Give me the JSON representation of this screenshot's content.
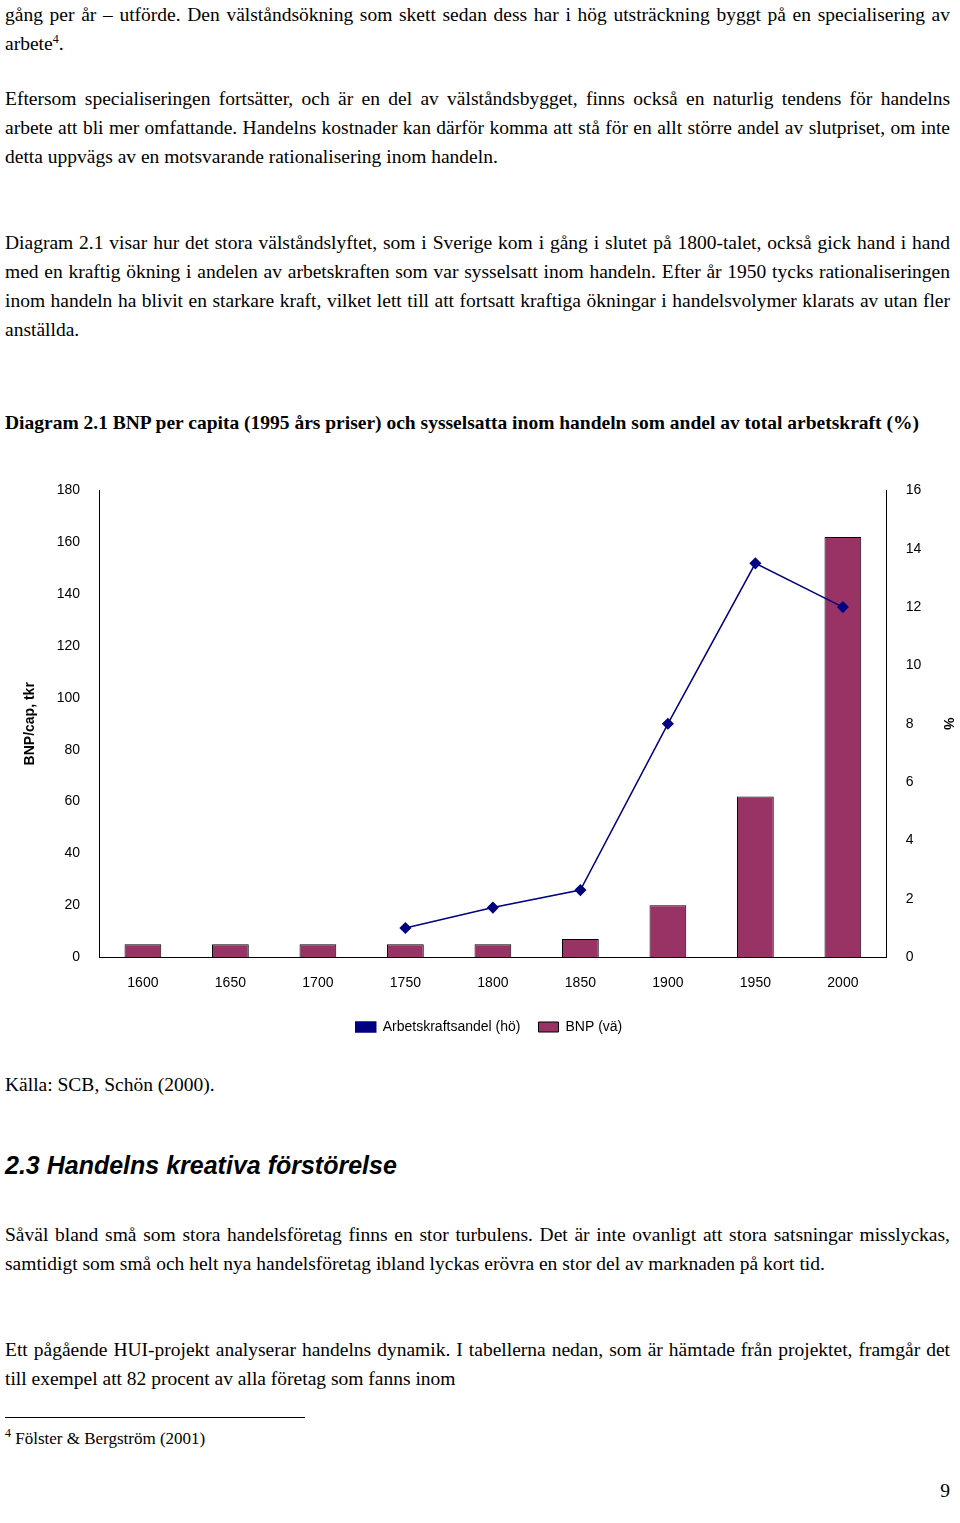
{
  "page": {
    "paragraphs": [
      {
        "text": "gång per år – utförde. Den välståndsökning som skett sedan dess har i hög utsträckning byggt på en specialisering av arbete",
        "footnote_ref": "4",
        "tail": "."
      },
      {
        "text": "Eftersom specialiseringen fortsätter, och är en del av välståndsbygget, finns också en naturlig tendens för handelns arbete att bli mer omfattande. Handelns kostnader kan därför komma att stå för en allt större andel av slutpriset, om inte detta uppvägs av en motsvarande rationalisering inom handeln."
      },
      {
        "text": "Diagram 2.1 visar hur det stora välståndslyftet, som i Sverige kom i gång i slutet på 1800-talet, också gick hand i hand med en kraftig ökning i andelen av arbetskraften som var sysselsatt inom handeln. Efter år 1950 tycks rationaliseringen inom handeln ha blivit en starkare kraft, vilket lett till att fortsatt kraftiga ökningar i handelsvolymer klarats av utan fler anställda."
      }
    ],
    "source": "Källa: SCB, Schön (2000).",
    "heading": "2.3 Handelns kreativa förstörelse",
    "paragraphs_after": [
      {
        "text": "Såväl bland små som stora handelsföretag finns en stor turbulens. Det är inte ovanligt att stora satsningar misslyckas, samtidigt som små och helt nya handelsföretag ibland lyckas erövra en stor del av marknaden på kort tid."
      },
      {
        "text": "Ett pågående HUI-projekt analyserar handelns dynamik. I tabellerna nedan, som är hämtade från projektet, framgår det till exempel att 82 procent av alla företag som fanns inom"
      }
    ],
    "footnote": {
      "mark": "4",
      "text": "Fölster & Bergström (2001)"
    },
    "page_number": "9"
  },
  "chart_data": {
    "type": "bar",
    "title": "Diagram 2.1 BNP per capita (1995 års priser) och sysselsatta inom handeln som andel av total arbetskraft (%)",
    "categories": [
      "1600",
      "1650",
      "1700",
      "1750",
      "1800",
      "1850",
      "1900",
      "1950",
      "2000"
    ],
    "series": [
      {
        "name": "BNP (vä)",
        "type": "bar",
        "color": "#993366",
        "values": [
          5,
          5,
          5,
          5,
          5,
          7,
          20,
          62,
          162
        ]
      },
      {
        "name": "Arbetskraftsandel (hö)",
        "type": "line",
        "color": "#000080",
        "marker": "diamond",
        "axis": "y2",
        "values": [
          null,
          null,
          null,
          1.0,
          1.7,
          2.3,
          8.0,
          13.5,
          12.0
        ]
      }
    ],
    "y_label": "BNP/cap, tkr",
    "y2_label": "%",
    "ylim": [
      0,
      180
    ],
    "yticks": [
      0,
      20,
      40,
      60,
      80,
      100,
      120,
      140,
      160,
      180
    ],
    "y2lim": [
      0,
      16
    ],
    "y2ticks": [
      0,
      2,
      4,
      6,
      8,
      10,
      12,
      14,
      16
    ],
    "grid": false,
    "legend": "bottom"
  }
}
